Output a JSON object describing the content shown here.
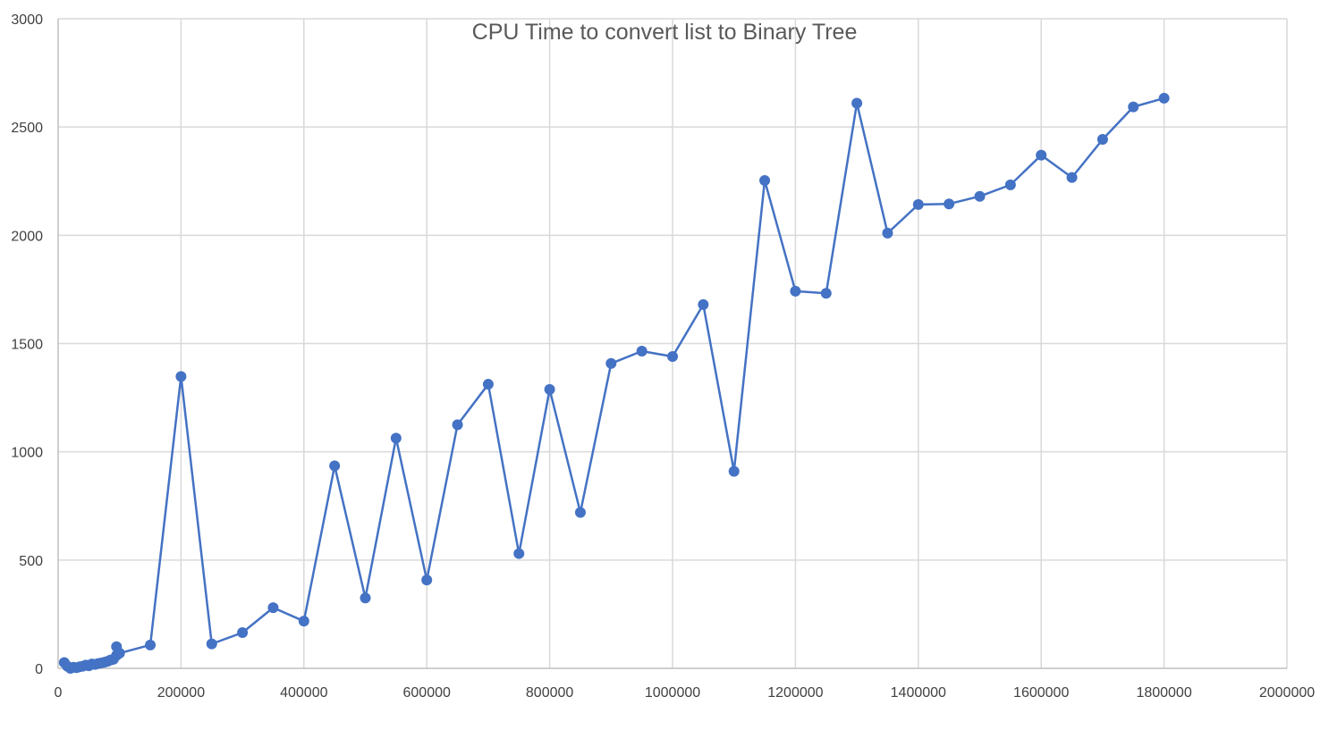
{
  "chart_data": {
    "type": "scatter",
    "title": "CPU Time to convert list to Binary Tree",
    "xlabel": "",
    "ylabel": "",
    "xlim": [
      0,
      2000000
    ],
    "ylim": [
      0,
      3000
    ],
    "x_ticks": [
      0,
      200000,
      400000,
      600000,
      800000,
      1000000,
      1200000,
      1400000,
      1600000,
      1800000,
      2000000
    ],
    "x_tick_labels": [
      "0",
      "200000",
      "400000",
      "600000",
      "800000",
      "1000000",
      "1200000",
      "1400000",
      "1600000",
      "1800000",
      "2000000"
    ],
    "y_ticks": [
      0,
      500,
      1000,
      1500,
      2000,
      2500,
      3000
    ],
    "y_tick_labels": [
      "0",
      "500",
      "1000",
      "1500",
      "2000",
      "2500",
      "3000"
    ],
    "grid": true,
    "legend": "none",
    "color": "#4472c4",
    "series": [
      {
        "x": [
          10000,
          15000,
          20000,
          25000,
          30000,
          35000,
          40000,
          45000,
          50000,
          55000,
          60000,
          65000,
          70000,
          75000,
          80000,
          85000,
          90000,
          95000,
          100000,
          150000,
          200000,
          250000,
          300000,
          350000,
          400000,
          450000,
          500000,
          550000,
          600000,
          650000,
          700000,
          750000,
          800000,
          850000,
          900000,
          950000,
          1000000,
          1050000,
          1100000,
          1150000,
          1200000,
          1250000,
          1300000,
          1350000,
          1400000,
          1450000,
          1500000,
          1550000,
          1600000,
          1650000,
          1700000,
          1750000,
          1800000
        ],
        "y": [
          27,
          10,
          0,
          5,
          3,
          7,
          10,
          15,
          12,
          20,
          18,
          22,
          25,
          28,
          32,
          38,
          42,
          60,
          70,
          108,
          1348,
          113,
          165,
          280,
          218,
          935,
          325,
          1063,
          408,
          1125,
          1312,
          530,
          1288,
          720,
          1408,
          1465,
          1440,
          1680,
          910,
          2253,
          1742,
          1732,
          2610,
          2010,
          2142,
          2145,
          2180,
          2233,
          2370,
          2267,
          2443,
          2593,
          2633
        ]
      },
      {
        "x": [
          95000
        ],
        "y": [
          100
        ]
      }
    ]
  }
}
